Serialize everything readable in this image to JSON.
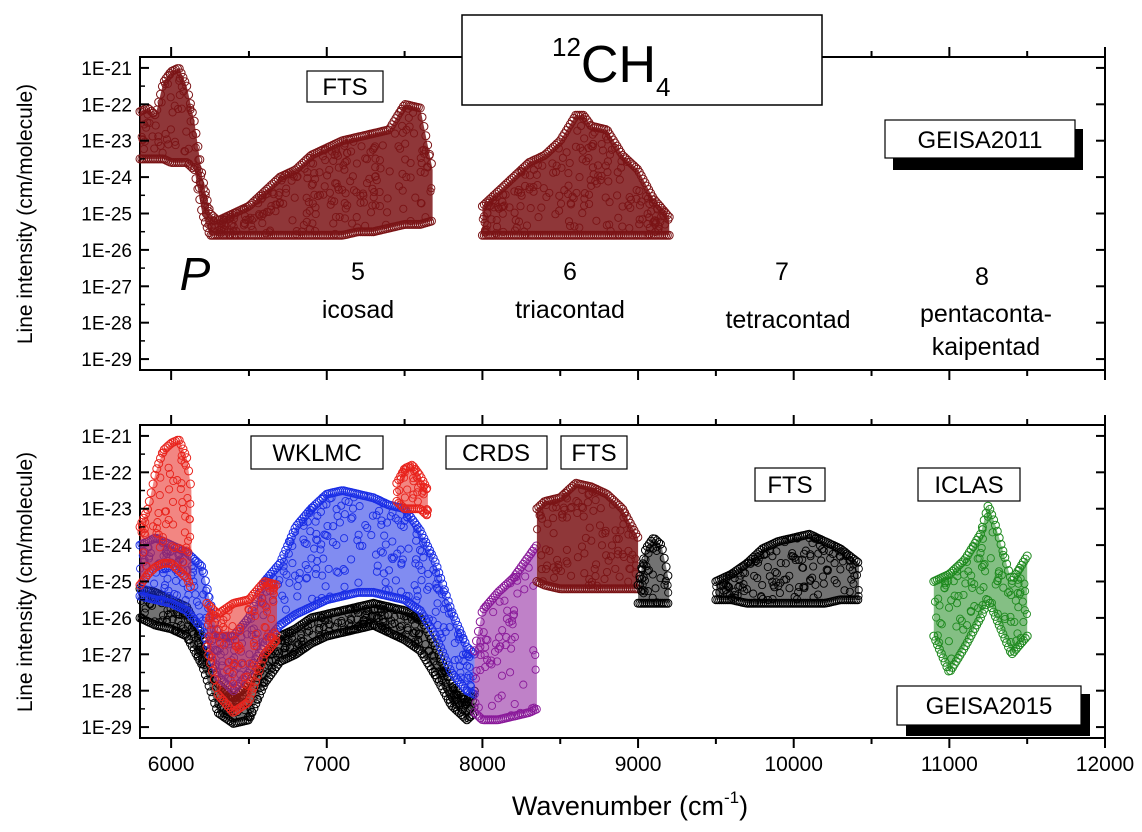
{
  "title": {
    "base": "12",
    "element": "CH",
    "sub": "4"
  },
  "xlabel": {
    "text": "Wavenumber (cm",
    "sup": "-1",
    "close": ")"
  },
  "ylabel": "Line intensity (cm/molecule)",
  "x_ticks": [
    "6000",
    "7000",
    "8000",
    "9000",
    "10000",
    "11000",
    "12000"
  ],
  "y_ticks": [
    "1E-21",
    "1E-22",
    "1E-23",
    "1E-24",
    "1E-25",
    "1E-26",
    "1E-27",
    "1E-28",
    "1E-29"
  ],
  "top_panel": {
    "badge": "GEISA2011",
    "labels": {
      "fts": "FTS",
      "p": "P",
      "n5": "5",
      "icosad": "icosad",
      "n6": "6",
      "triacontad": "triacontad",
      "n7": "7",
      "tetracontad": "tetracontad",
      "n8": "8",
      "pentaconta": "pentaconta-",
      "kaipentad": "kaipentad"
    }
  },
  "bottom_panel": {
    "badge": "GEISA2015",
    "labels": {
      "wklmc": "WKLMC",
      "crds": "CRDS",
      "fts1": "FTS",
      "fts2": "FTS",
      "iclas": "ICLAS"
    }
  },
  "colors": {
    "darkred": "#7b1416",
    "red": "#e8231c",
    "blue": "#1a2ee6",
    "purple": "#8a1a9a",
    "green": "#1f8a1f",
    "black": "#000000"
  },
  "chart_data": [
    {
      "type": "scatter",
      "panel": "top",
      "xlim": [
        5800,
        12000
      ],
      "ylim_log10": [
        -29.3,
        -20.7
      ],
      "y_scale": "log",
      "series": [
        {
          "color": "darkred",
          "x": [
            5800,
            5850,
            5900,
            5950,
            6000,
            6050,
            6100,
            6150,
            6200,
            6250,
            6300,
            6400,
            6500,
            6600,
            6700,
            6800,
            6900,
            7000,
            7100,
            7200,
            7300,
            7400,
            7500,
            7600,
            7680
          ],
          "top": [
            -22.2,
            -22.1,
            -22.3,
            -21.4,
            -21.1,
            -21.0,
            -21.5,
            -22.5,
            -24.0,
            -25.0,
            -25.2,
            -25.0,
            -24.8,
            -24.4,
            -24.0,
            -23.8,
            -23.4,
            -23.2,
            -23.0,
            -22.9,
            -22.8,
            -22.7,
            -22.0,
            -22.1,
            -23.8
          ],
          "bottom": [
            -23.5,
            -23.5,
            -23.5,
            -23.5,
            -23.6,
            -23.6,
            -23.6,
            -23.8,
            -25.0,
            -25.6,
            -25.6,
            -25.6,
            -25.6,
            -25.6,
            -25.6,
            -25.6,
            -25.6,
            -25.6,
            -25.6,
            -25.5,
            -25.5,
            -25.4,
            -25.3,
            -25.3,
            -25.2
          ]
        },
        {
          "color": "darkred",
          "x": [
            8000,
            8100,
            8200,
            8300,
            8400,
            8500,
            8600,
            8650,
            8700,
            8800,
            8900,
            9000,
            9100,
            9200
          ],
          "top": [
            -24.8,
            -24.4,
            -24.0,
            -23.6,
            -23.4,
            -23.0,
            -22.3,
            -22.3,
            -22.6,
            -22.7,
            -23.4,
            -23.8,
            -24.6,
            -25.1
          ],
          "bottom": [
            -25.6,
            -25.6,
            -25.6,
            -25.6,
            -25.6,
            -25.6,
            -25.6,
            -25.6,
            -25.6,
            -25.6,
            -25.6,
            -25.6,
            -25.6,
            -25.6
          ]
        }
      ]
    },
    {
      "type": "scatter",
      "panel": "bottom",
      "xlim": [
        5800,
        12000
      ],
      "ylim_log10": [
        -29.3,
        -20.7
      ],
      "y_scale": "log",
      "series": [
        {
          "color": "black",
          "x": [
            5800,
            5900,
            6000,
            6100,
            6200,
            6300,
            6400,
            6500,
            6600,
            6700,
            6800,
            6900,
            7000,
            7100,
            7200,
            7300,
            7400,
            7500,
            7600,
            7700,
            7800,
            7900,
            7950
          ],
          "top": [
            -25.2,
            -25.3,
            -25.5,
            -25.7,
            -26.5,
            -27.8,
            -28.2,
            -27.8,
            -27.0,
            -26.5,
            -26.3,
            -26.0,
            -25.9,
            -25.8,
            -25.7,
            -25.6,
            -25.7,
            -25.8,
            -26.0,
            -26.8,
            -27.8,
            -28.3,
            -28.0
          ],
          "bottom": [
            -26.0,
            -26.2,
            -26.3,
            -26.5,
            -27.3,
            -28.6,
            -28.9,
            -28.8,
            -27.8,
            -27.2,
            -27.0,
            -26.7,
            -26.5,
            -26.4,
            -26.3,
            -26.2,
            -26.4,
            -26.6,
            -26.9,
            -27.6,
            -28.4,
            -28.8,
            -28.6
          ]
        },
        {
          "color": "blue",
          "x": [
            5800,
            5900,
            6000,
            6100,
            6200,
            6300,
            6400,
            6500,
            6600,
            6700,
            6800,
            6900,
            7000,
            7100,
            7200,
            7300,
            7400,
            7500,
            7600,
            7700,
            7800,
            7900,
            7950
          ],
          "top": [
            -24.0,
            -23.8,
            -24.0,
            -24.2,
            -24.6,
            -26.5,
            -26.5,
            -26.0,
            -25.0,
            -24.5,
            -23.5,
            -23.0,
            -22.6,
            -22.5,
            -22.6,
            -22.7,
            -22.9,
            -23.0,
            -23.6,
            -24.5,
            -25.8,
            -26.8,
            -27.0
          ],
          "bottom": [
            -25.4,
            -25.5,
            -25.6,
            -25.8,
            -26.3,
            -27.6,
            -28.0,
            -27.5,
            -26.7,
            -26.2,
            -25.9,
            -25.7,
            -25.5,
            -25.4,
            -25.3,
            -25.3,
            -25.4,
            -25.5,
            -25.8,
            -26.5,
            -27.5,
            -28.0,
            -28.1
          ]
        },
        {
          "color": "red",
          "x": [
            5800,
            5850,
            5900,
            5950,
            6000,
            6050,
            6100,
            6130
          ],
          "top": [
            -23.5,
            -23.0,
            -22.0,
            -21.4,
            -21.2,
            -21.1,
            -21.6,
            -22.5
          ],
          "bottom": [
            -25.1,
            -24.8,
            -24.6,
            -24.5,
            -24.5,
            -24.7,
            -24.9,
            -25.2
          ]
        },
        {
          "color": "red",
          "x": [
            6230,
            6300,
            6400,
            6500,
            6600,
            6680
          ],
          "top": [
            -25.6,
            -25.9,
            -25.6,
            -25.5,
            -25.0,
            -25.1
          ],
          "bottom": [
            -26.8,
            -28.1,
            -28.6,
            -28.3,
            -27.0,
            -26.6
          ]
        },
        {
          "color": "red",
          "x": [
            7450,
            7500,
            7550,
            7600,
            7650
          ],
          "top": [
            -22.3,
            -21.9,
            -21.8,
            -22.1,
            -22.5
          ],
          "bottom": [
            -22.8,
            -23.0,
            -23.0,
            -23.0,
            -23.2
          ]
        },
        {
          "color": "purple",
          "x": [
            7950,
            8000,
            8100,
            8200,
            8300,
            8350
          ],
          "top": [
            -26.9,
            -25.8,
            -25.3,
            -24.9,
            -24.3,
            -24.0
          ],
          "bottom": [
            -28.6,
            -28.8,
            -28.8,
            -28.7,
            -28.6,
            -28.5
          ]
        },
        {
          "color": "darkred",
          "x": [
            8350,
            8400,
            8500,
            8600,
            8700,
            8800,
            8900,
            9000
          ],
          "top": [
            -23.0,
            -22.8,
            -22.7,
            -22.3,
            -22.4,
            -22.6,
            -23.0,
            -23.8
          ],
          "bottom": [
            -25.0,
            -25.1,
            -25.2,
            -25.2,
            -25.2,
            -25.2,
            -25.2,
            -25.2
          ]
        },
        {
          "color": "black",
          "x": [
            9000,
            9050,
            9100,
            9150,
            9200
          ],
          "top": [
            -25.1,
            -24.1,
            -23.8,
            -24.0,
            -25.0
          ],
          "bottom": [
            -25.6,
            -25.6,
            -25.6,
            -25.6,
            -25.6
          ]
        },
        {
          "color": "black",
          "x": [
            9500,
            9600,
            9700,
            9800,
            9900,
            10000,
            10100,
            10200,
            10300,
            10420
          ],
          "top": [
            -25.0,
            -24.8,
            -24.5,
            -24.1,
            -23.9,
            -23.8,
            -23.7,
            -23.9,
            -24.1,
            -24.5
          ],
          "bottom": [
            -25.5,
            -25.5,
            -25.6,
            -25.6,
            -25.6,
            -25.6,
            -25.6,
            -25.6,
            -25.5,
            -25.5
          ]
        },
        {
          "color": "green",
          "x": [
            10900,
            11000,
            11100,
            11200,
            11250,
            11300,
            11400,
            11500
          ],
          "top": [
            -25.0,
            -24.8,
            -24.4,
            -23.7,
            -22.9,
            -23.5,
            -25.0,
            -24.3
          ],
          "bottom": [
            -26.5,
            -27.5,
            -26.8,
            -26.0,
            -25.5,
            -26.0,
            -27.0,
            -26.5
          ]
        }
      ]
    }
  ]
}
